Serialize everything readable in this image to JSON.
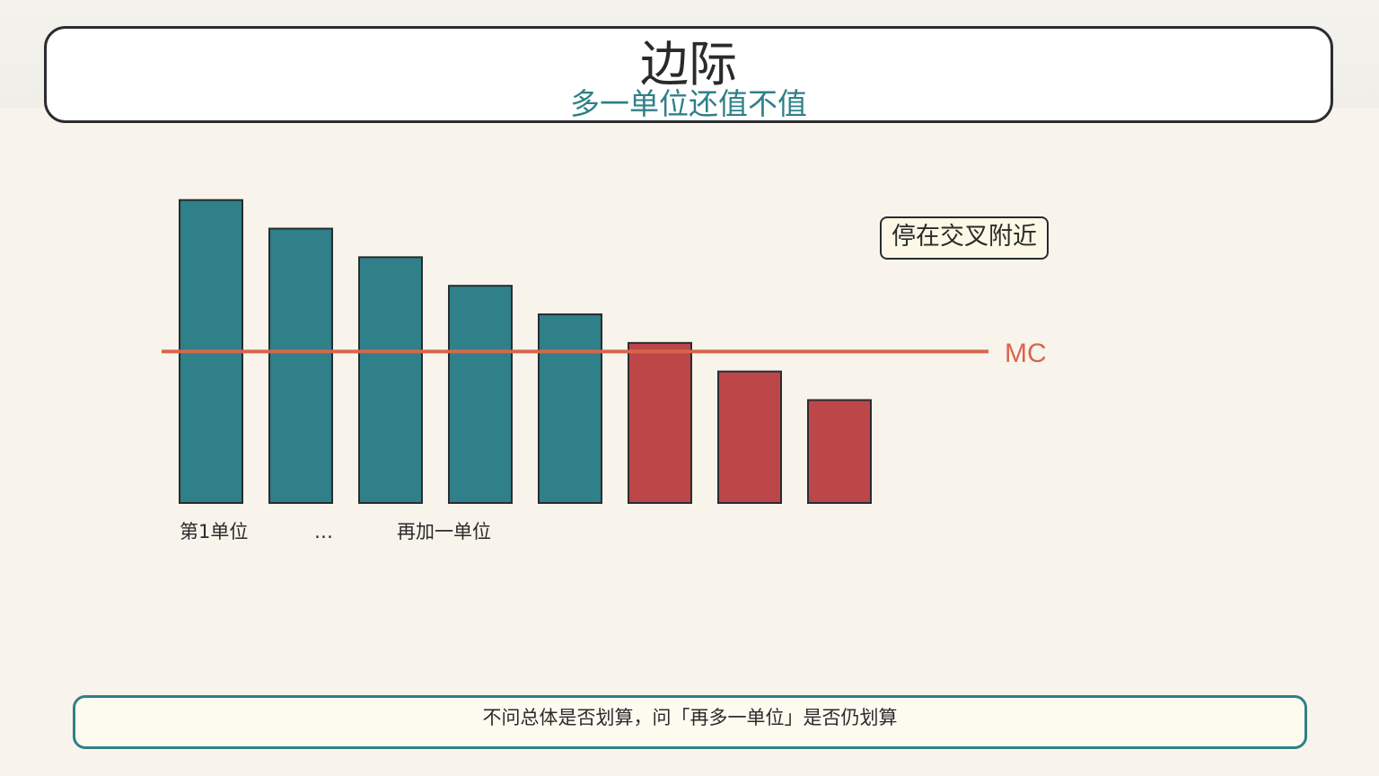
{
  "header": {
    "title": "边际",
    "subtitle": "多一单位还值不值"
  },
  "chart_data": {
    "type": "bar",
    "values": [
      10.6,
      9.6,
      8.6,
      7.6,
      6.6,
      5.6,
      4.6,
      3.6
    ],
    "highlight": [
      "benefit",
      "benefit",
      "benefit",
      "benefit",
      "benefit",
      "cost",
      "cost",
      "cost"
    ],
    "reference_line": {
      "label": "MC",
      "value": 5.3
    },
    "x_tick_labels": [
      "第1单位",
      "…",
      "再加一单位"
    ],
    "ylim": [
      0,
      11
    ],
    "grid": false,
    "colors": {
      "benefit": "#2f8088",
      "cost": "#bd4648",
      "mc_line": "#d8664a",
      "bar_border": "#2a2c30"
    }
  },
  "annotation": {
    "text": "停在交叉附近"
  },
  "footer": {
    "text": "不问总体是否划算，问「再多一单位」是否仍划算"
  }
}
